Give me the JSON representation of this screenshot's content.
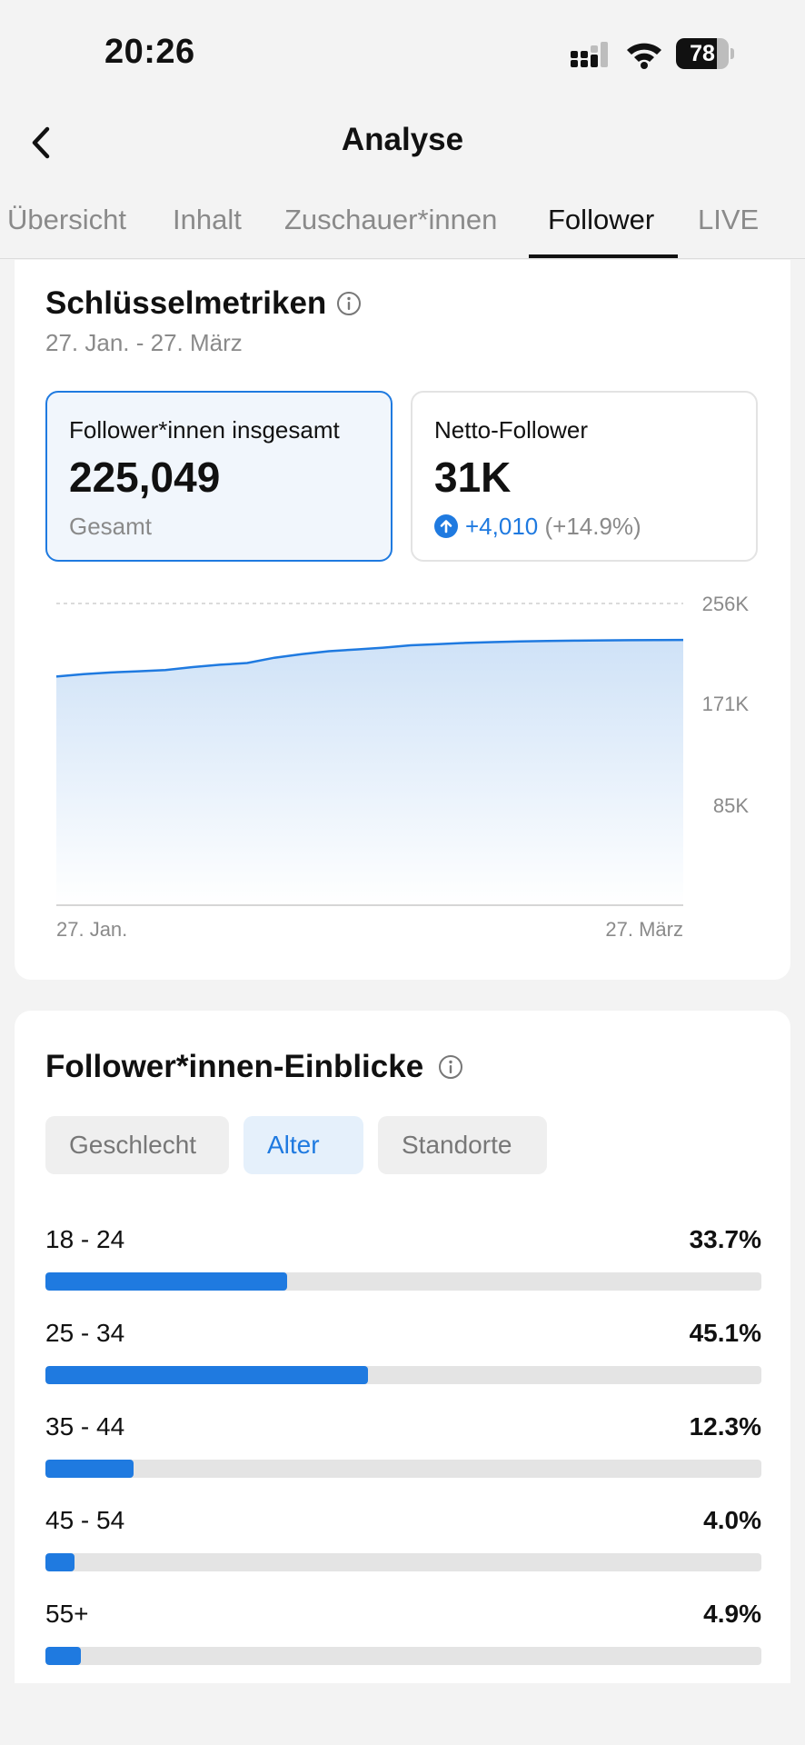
{
  "status_bar": {
    "time": "20:26",
    "battery": "78",
    "battery_level": 0.78
  },
  "header": {
    "title": "Analyse"
  },
  "tabs": [
    {
      "label": "Übersicht"
    },
    {
      "label": "Inhalt"
    },
    {
      "label": "Zuschauer*innen"
    },
    {
      "label": "Follower"
    },
    {
      "label": "LIVE"
    }
  ],
  "active_tab": "Follower",
  "key_metrics": {
    "title": "Schlüsselmetriken",
    "date_range": "27. Jan. - 27. März",
    "cards": [
      {
        "label": "Follower*innen insgesamt",
        "value": "225,049",
        "sub": "Gesamt"
      },
      {
        "label": "Netto-Follower",
        "value": "31K",
        "delta": "+4,010",
        "delta_pct": "(+14.9%)"
      }
    ]
  },
  "chart_data": {
    "type": "area",
    "x_start_label": "27. Jan.",
    "x_end_label": "27. März",
    "y_ticks": [
      "85K",
      "171K",
      "256K"
    ],
    "y_tick_values": [
      85000,
      171000,
      256000
    ],
    "ylim": [
      0,
      256000
    ],
    "grid": true,
    "values": [
      194000,
      196000,
      197500,
      198500,
      199500,
      202000,
      204000,
      205500,
      210000,
      213000,
      215500,
      217000,
      218500,
      220500,
      221500,
      222500,
      223200,
      223800,
      224200,
      224500,
      224700,
      224850,
      224950,
      225049
    ],
    "colors": {
      "line": "#1f7ae0",
      "fill_top": "#cfe2f7"
    }
  },
  "insights": {
    "title": "Follower*innen-Einblicke",
    "filters": [
      "Geschlecht",
      "Alter",
      "Standorte"
    ],
    "active_filter": "Alter",
    "age_groups": [
      {
        "label": "18 - 24",
        "pct_label": "33.7%",
        "pct": 33.7
      },
      {
        "label": "25 - 34",
        "pct_label": "45.1%",
        "pct": 45.1
      },
      {
        "label": "35 - 44",
        "pct_label": "12.3%",
        "pct": 12.3
      },
      {
        "label": "45 - 54",
        "pct_label": "4.0%",
        "pct": 4.0
      },
      {
        "label": "55+",
        "pct_label": "4.9%",
        "pct": 4.9
      }
    ]
  },
  "icons": [
    "signal-icon",
    "wifi-icon",
    "battery-icon",
    "back-chevron-icon",
    "info-icon",
    "arrow-up-circle-icon"
  ],
  "colors": {
    "accent": "#1f7ae0",
    "background": "#f3f3f3",
    "card": "#ffffff"
  }
}
